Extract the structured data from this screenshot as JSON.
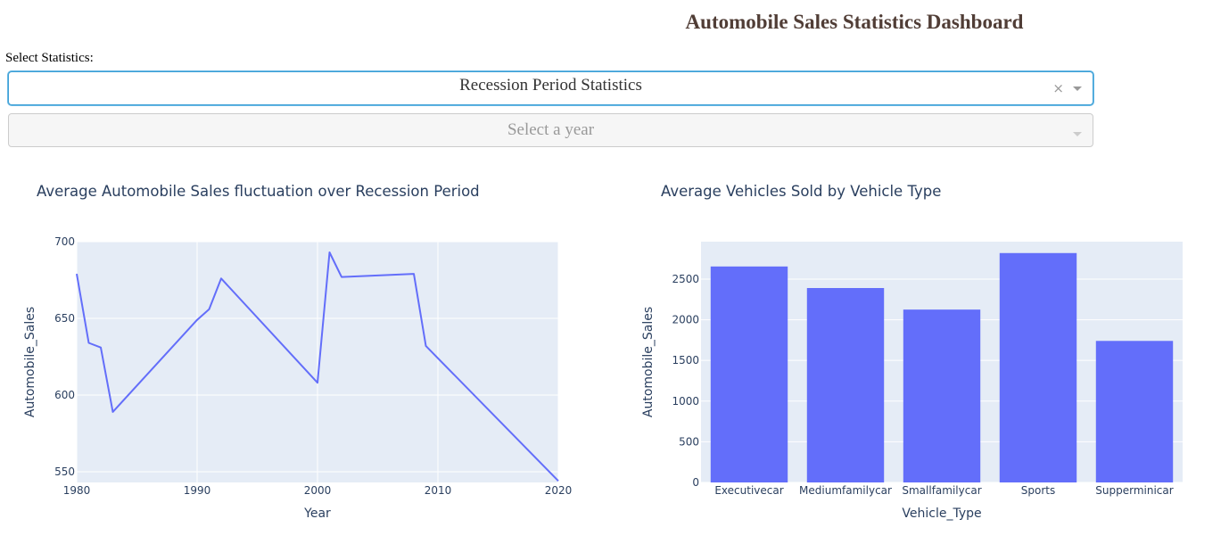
{
  "header": {
    "title": "Automobile Sales Statistics Dashboard"
  },
  "controls": {
    "label": "Select Statistics:",
    "statistics_dropdown": {
      "value": "Recession Period Statistics",
      "clear": "×"
    },
    "year_dropdown": {
      "placeholder": "Select a year"
    }
  },
  "colors": {
    "title": "#503D36",
    "bar": "#636efa",
    "line": "#636efa",
    "plot_bg": "#E5ECF6",
    "text": "#2a3f5f"
  },
  "chart_data": [
    {
      "type": "line",
      "title": "Average Automobile Sales fluctuation over Recession Period",
      "xlabel": "Year",
      "ylabel": "Automobile_Sales",
      "xlim": [
        1980,
        2020
      ],
      "ylim": [
        543,
        700
      ],
      "xticks": [
        "1980",
        "1990",
        "2000",
        "2010",
        "2020"
      ],
      "yticks": [
        "550",
        "600",
        "650",
        "700"
      ],
      "grid": true,
      "series": [
        {
          "x": [
            1980,
            1981,
            1982,
            1983,
            1990,
            1991,
            1992,
            2000,
            2001,
            2002,
            2008,
            2009,
            2020
          ],
          "y": [
            679,
            634,
            631,
            589,
            649,
            656,
            676,
            608,
            693,
            677,
            679,
            632,
            544
          ]
        }
      ]
    },
    {
      "type": "bar",
      "title": "Average Vehicles Sold by Vehicle Type",
      "xlabel": "Vehicle_Type",
      "ylabel": "Automobile_Sales",
      "categories": [
        "Executivecar",
        "Mediumfamilycar",
        "Smallfamilycar",
        "Sports",
        "Supperminicar"
      ],
      "values": [
        2655,
        2390,
        2125,
        2820,
        1740
      ],
      "ylim": [
        0,
        2960
      ],
      "yticks": [
        "0",
        "500",
        "1000",
        "1500",
        "2000",
        "2500"
      ],
      "grid": true
    }
  ]
}
